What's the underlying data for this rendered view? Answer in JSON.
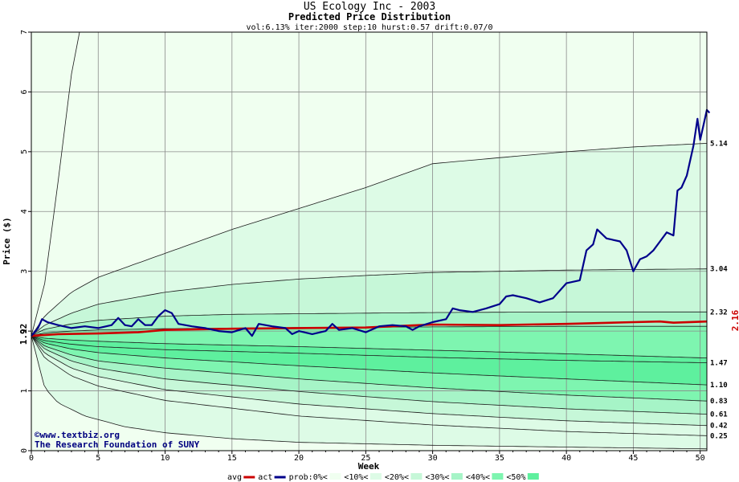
{
  "chart_data": {
    "type": "area",
    "title": "US Ecology Inc - 2003",
    "subtitle": "Predicted Price Distribution",
    "params": "vol:6.13% iter:2000 step:10 hurst:0.57 drift:0.07/0",
    "xlabel": "Week",
    "ylabel": "Price ($)",
    "xlim": [
      0,
      50.5
    ],
    "ylim": [
      0,
      7
    ],
    "xticks": [
      0,
      5,
      10,
      15,
      20,
      25,
      30,
      35,
      40,
      45,
      50
    ],
    "yticks": [
      0,
      1,
      2,
      3,
      4,
      5,
      6,
      7
    ],
    "grid": true,
    "start_price": 1.92,
    "start_price_label": "1.92",
    "final_avg_label": "2.16",
    "band_labels": [
      {
        "value": 5.14,
        "label": "5.14"
      },
      {
        "value": 3.04,
        "label": "3.04"
      },
      {
        "value": 2.32,
        "label": "2.32"
      },
      {
        "value": 1.47,
        "label": "1.47"
      },
      {
        "value": 1.1,
        "label": "1.10"
      },
      {
        "value": 0.83,
        "label": "0.83"
      },
      {
        "value": 0.61,
        "label": "0.61"
      },
      {
        "value": 0.42,
        "label": "0.42"
      },
      {
        "value": 0.25,
        "label": "0.25"
      }
    ],
    "percentile_curves": [
      {
        "name": "upper-extreme",
        "points": [
          [
            0,
            1.92
          ],
          [
            1,
            2.8
          ],
          [
            2,
            4.5
          ],
          [
            3,
            6.3
          ],
          [
            3.6,
            7.0
          ]
        ]
      },
      {
        "name": "upper-0",
        "points": [
          [
            0,
            1.92
          ],
          [
            1,
            2.25
          ],
          [
            3,
            2.65
          ],
          [
            5,
            2.9
          ],
          [
            10,
            3.3
          ],
          [
            15,
            3.7
          ],
          [
            20,
            4.05
          ],
          [
            25,
            4.4
          ],
          [
            30,
            4.8
          ],
          [
            35,
            4.9
          ],
          [
            40,
            5.0
          ],
          [
            45,
            5.08
          ],
          [
            50.5,
            5.14
          ]
        ]
      },
      {
        "name": "upper-10",
        "points": [
          [
            0,
            1.92
          ],
          [
            1,
            2.1
          ],
          [
            3,
            2.3
          ],
          [
            5,
            2.45
          ],
          [
            10,
            2.65
          ],
          [
            15,
            2.78
          ],
          [
            20,
            2.87
          ],
          [
            25,
            2.93
          ],
          [
            30,
            2.98
          ],
          [
            35,
            3.0
          ],
          [
            40,
            3.02
          ],
          [
            45,
            3.03
          ],
          [
            50.5,
            3.04
          ]
        ]
      },
      {
        "name": "upper-20",
        "points": [
          [
            0,
            1.92
          ],
          [
            1,
            2.03
          ],
          [
            3,
            2.12
          ],
          [
            5,
            2.18
          ],
          [
            10,
            2.25
          ],
          [
            15,
            2.28
          ],
          [
            20,
            2.29
          ],
          [
            25,
            2.3
          ],
          [
            30,
            2.31
          ],
          [
            40,
            2.32
          ],
          [
            50.5,
            2.32
          ]
        ]
      },
      {
        "name": "upper-30",
        "points": [
          [
            0,
            1.92
          ],
          [
            1,
            1.97
          ],
          [
            3,
            2.0
          ],
          [
            5,
            2.02
          ],
          [
            10,
            2.04
          ],
          [
            20,
            2.06
          ],
          [
            30,
            2.07
          ],
          [
            40,
            2.08
          ],
          [
            50.5,
            2.08
          ]
        ]
      },
      {
        "name": "lower-30",
        "points": [
          [
            0,
            1.92
          ],
          [
            1,
            1.88
          ],
          [
            3,
            1.85
          ],
          [
            5,
            1.83
          ],
          [
            10,
            1.79
          ],
          [
            20,
            1.74
          ],
          [
            30,
            1.68
          ],
          [
            40,
            1.62
          ],
          [
            50.5,
            1.55
          ]
        ]
      },
      {
        "name": "lower-40",
        "points": [
          [
            0,
            1.92
          ],
          [
            1,
            1.84
          ],
          [
            3,
            1.78
          ],
          [
            5,
            1.74
          ],
          [
            10,
            1.69
          ],
          [
            20,
            1.63
          ],
          [
            30,
            1.56
          ],
          [
            40,
            1.51
          ],
          [
            50.5,
            1.47
          ]
        ]
      },
      {
        "name": "lower-50a",
        "points": [
          [
            0,
            1.92
          ],
          [
            1,
            1.8
          ],
          [
            3,
            1.7
          ],
          [
            5,
            1.64
          ],
          [
            10,
            1.55
          ],
          [
            20,
            1.42
          ],
          [
            30,
            1.3
          ],
          [
            40,
            1.2
          ],
          [
            50.5,
            1.1
          ]
        ]
      },
      {
        "name": "lower-50b",
        "points": [
          [
            0,
            1.92
          ],
          [
            1,
            1.75
          ],
          [
            3,
            1.6
          ],
          [
            5,
            1.5
          ],
          [
            10,
            1.38
          ],
          [
            20,
            1.2
          ],
          [
            30,
            1.05
          ],
          [
            40,
            0.93
          ],
          [
            50.5,
            0.83
          ]
        ]
      },
      {
        "name": "lower-40b",
        "points": [
          [
            0,
            1.92
          ],
          [
            1,
            1.7
          ],
          [
            3,
            1.5
          ],
          [
            5,
            1.38
          ],
          [
            10,
            1.2
          ],
          [
            20,
            0.99
          ],
          [
            30,
            0.82
          ],
          [
            40,
            0.7
          ],
          [
            50.5,
            0.61
          ]
        ]
      },
      {
        "name": "lower-30b",
        "points": [
          [
            0,
            1.92
          ],
          [
            1,
            1.63
          ],
          [
            3,
            1.38
          ],
          [
            5,
            1.24
          ],
          [
            10,
            1.02
          ],
          [
            20,
            0.78
          ],
          [
            30,
            0.62
          ],
          [
            40,
            0.5
          ],
          [
            50.5,
            0.42
          ]
        ]
      },
      {
        "name": "lower-20b",
        "points": [
          [
            0,
            1.92
          ],
          [
            1,
            1.55
          ],
          [
            3,
            1.25
          ],
          [
            5,
            1.08
          ],
          [
            10,
            0.84
          ],
          [
            20,
            0.58
          ],
          [
            30,
            0.43
          ],
          [
            40,
            0.32
          ],
          [
            50.5,
            0.25
          ]
        ]
      },
      {
        "name": "lower-extreme",
        "points": [
          [
            0,
            1.92
          ],
          [
            1,
            1.05
          ],
          [
            2,
            0.8
          ],
          [
            4,
            0.58
          ],
          [
            7,
            0.4
          ],
          [
            10,
            0.3
          ],
          [
            15,
            0.2
          ],
          [
            20,
            0.14
          ],
          [
            30,
            0.09
          ],
          [
            40,
            0.06
          ],
          [
            50.5,
            0.03
          ]
        ]
      }
    ],
    "band_colors": [
      "#f0fff0",
      "#ddfbe6",
      "#c6f7d8",
      "#a6f4c7",
      "#7ef5b0",
      "#5ef09e"
    ],
    "series": [
      {
        "name": "avg",
        "color": "#cc0000",
        "points": [
          [
            0,
            1.92
          ],
          [
            2,
            1.95
          ],
          [
            5,
            1.96
          ],
          [
            8,
            1.98
          ],
          [
            10,
            2.02
          ],
          [
            15,
            2.04
          ],
          [
            20,
            2.05
          ],
          [
            25,
            2.06
          ],
          [
            28,
            2.09
          ],
          [
            30,
            2.11
          ],
          [
            35,
            2.1
          ],
          [
            40,
            2.12
          ],
          [
            45,
            2.15
          ],
          [
            47,
            2.16
          ],
          [
            48,
            2.14
          ],
          [
            50.5,
            2.16
          ]
        ]
      },
      {
        "name": "act",
        "color": "#00008b",
        "points": [
          [
            0,
            1.92
          ],
          [
            0.5,
            2.05
          ],
          [
            0.8,
            2.2
          ],
          [
            1.2,
            2.15
          ],
          [
            2,
            2.1
          ],
          [
            3,
            2.05
          ],
          [
            4,
            2.08
          ],
          [
            5,
            2.05
          ],
          [
            6,
            2.1
          ],
          [
            6.5,
            2.22
          ],
          [
            7,
            2.1
          ],
          [
            7.5,
            2.08
          ],
          [
            8,
            2.2
          ],
          [
            8.5,
            2.1
          ],
          [
            9,
            2.1
          ],
          [
            9.5,
            2.25
          ],
          [
            10,
            2.35
          ],
          [
            10.5,
            2.3
          ],
          [
            11,
            2.12
          ],
          [
            12,
            2.08
          ],
          [
            13,
            2.05
          ],
          [
            14,
            2.0
          ],
          [
            15,
            1.98
          ],
          [
            16,
            2.05
          ],
          [
            16.5,
            1.92
          ],
          [
            17,
            2.12
          ],
          [
            18,
            2.08
          ],
          [
            19,
            2.05
          ],
          [
            19.5,
            1.95
          ],
          [
            20,
            2.0
          ],
          [
            21,
            1.95
          ],
          [
            22,
            2.0
          ],
          [
            22.5,
            2.12
          ],
          [
            23,
            2.02
          ],
          [
            24,
            2.05
          ],
          [
            25,
            1.98
          ],
          [
            26,
            2.08
          ],
          [
            27,
            2.1
          ],
          [
            28,
            2.08
          ],
          [
            28.5,
            2.02
          ],
          [
            29,
            2.08
          ],
          [
            30,
            2.15
          ],
          [
            31,
            2.2
          ],
          [
            31.5,
            2.38
          ],
          [
            32,
            2.35
          ],
          [
            33,
            2.32
          ],
          [
            34,
            2.38
          ],
          [
            35,
            2.45
          ],
          [
            35.5,
            2.58
          ],
          [
            36,
            2.6
          ],
          [
            37,
            2.55
          ],
          [
            38,
            2.48
          ],
          [
            39,
            2.55
          ],
          [
            40,
            2.8
          ],
          [
            41,
            2.85
          ],
          [
            41.5,
            3.35
          ],
          [
            42,
            3.45
          ],
          [
            42.3,
            3.7
          ],
          [
            43,
            3.55
          ],
          [
            44,
            3.5
          ],
          [
            44.5,
            3.35
          ],
          [
            45,
            3.0
          ],
          [
            45.5,
            3.2
          ],
          [
            46,
            3.25
          ],
          [
            46.5,
            3.35
          ],
          [
            47,
            3.5
          ],
          [
            47.5,
            3.65
          ],
          [
            48,
            3.6
          ],
          [
            48.3,
            4.35
          ],
          [
            48.6,
            4.4
          ],
          [
            49,
            4.6
          ],
          [
            49.5,
            5.1
          ],
          [
            49.8,
            5.55
          ],
          [
            50,
            5.2
          ],
          [
            50.3,
            5.5
          ],
          [
            50.5,
            5.7
          ],
          [
            50.7,
            5.65
          ]
        ]
      }
    ],
    "legend": [
      {
        "label": "avg",
        "kind": "line",
        "color": "#cc0000"
      },
      {
        "label": "act",
        "kind": "line",
        "color": "#00008b"
      },
      {
        "label": "prob:0%<",
        "kind": "swatch",
        "color": "#f0fff0"
      },
      {
        "label": "<10%<",
        "kind": "swatch",
        "color": "#ddfbe6"
      },
      {
        "label": "<20%<",
        "kind": "swatch",
        "color": "#c6f7d8"
      },
      {
        "label": "<30%<",
        "kind": "swatch",
        "color": "#a6f4c7"
      },
      {
        "label": "<40%<",
        "kind": "swatch",
        "color": "#7ef5b0"
      },
      {
        "label": "<50%",
        "kind": "swatch",
        "color": "#5ef09e"
      }
    ],
    "credits": [
      "www.textbiz.org",
      "The Research Foundation of SUNY"
    ],
    "copyright_symbol": "©"
  }
}
